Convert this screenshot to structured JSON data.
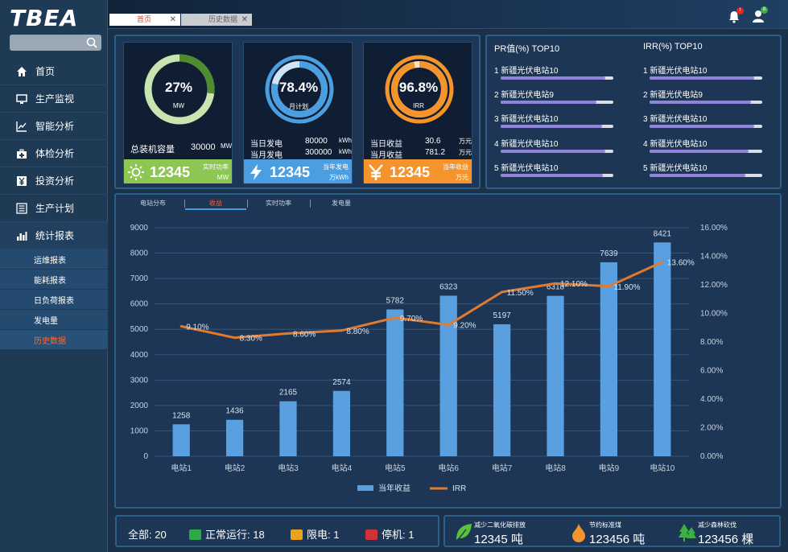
{
  "app": {
    "logo": "TBEA"
  },
  "tabs": [
    {
      "label": "首页",
      "active": true
    },
    {
      "label": "历史数据",
      "active": false
    }
  ],
  "notifications": {
    "bell_count": "!",
    "user_count": "8"
  },
  "nav": [
    {
      "label": "首页",
      "icon": "home-icon"
    },
    {
      "label": "生产监视",
      "icon": "monitor-icon"
    },
    {
      "label": "智能分析",
      "icon": "line-chart-icon"
    },
    {
      "label": "体检分析",
      "icon": "medical-kit-icon"
    },
    {
      "label": "投资分析",
      "icon": "yen-icon"
    },
    {
      "label": "生产计划",
      "icon": "list-icon"
    },
    {
      "label": "统计报表",
      "icon": "chart-bars-icon"
    }
  ],
  "subnav": [
    {
      "label": "运维报表",
      "active": false
    },
    {
      "label": "能耗报表",
      "active": false
    },
    {
      "label": "日负荷报表",
      "active": false
    },
    {
      "label": "发电量",
      "active": false
    },
    {
      "label": "历史数据",
      "active": true
    }
  ],
  "cards": {
    "capacity": {
      "gauge_value": "27%",
      "gauge_unit": "MW",
      "percent": 27,
      "label": "总装机容量",
      "number": "30000",
      "unit": "MW",
      "strip_value": "12345",
      "strip_caption_1": "实时功率",
      "strip_caption_2": "MW",
      "color": "#8dc653",
      "ring_color": "#c8e4b0",
      "accent": "#4f8b2f"
    },
    "plan": {
      "gauge_value": "78.4%",
      "gauge_unit": "月计划",
      "percent": 78.4,
      "rows": [
        {
          "label": "当日发电",
          "number": "80000",
          "unit": "kWh"
        },
        {
          "label": "当月发电",
          "number": "300000",
          "unit": "kWh"
        }
      ],
      "strip_value": "12345",
      "strip_caption_1": "当年发电",
      "strip_caption_2": "万kWh",
      "color": "#4b9fe1"
    },
    "irr": {
      "gauge_value": "96.8%",
      "gauge_unit": "IRR",
      "percent": 96.8,
      "rows": [
        {
          "label": "当日收益",
          "number": "30.6",
          "unit": "万元"
        },
        {
          "label": "当月收益",
          "number": "781.2",
          "unit": "万元"
        }
      ],
      "strip_value": "12345",
      "strip_caption_1": "当年收益",
      "strip_caption_2": "万元",
      "color": "#f5932d"
    }
  },
  "pr_top10": {
    "title": "PR值(%) TOP10",
    "items": [
      {
        "label": "1 新疆光伏电站10",
        "value": 0.93
      },
      {
        "label": "2 新疆光伏电站9",
        "value": 0.85
      },
      {
        "label": "3 新疆光伏电站10",
        "value": 0.9
      },
      {
        "label": "4 新疆光伏电站10",
        "value": 0.93
      },
      {
        "label": "5 新疆光伏电站10",
        "value": 0.91
      }
    ]
  },
  "irr_top10": {
    "title": "IRR(%) TOP10",
    "items": [
      {
        "label": "1 新疆光伏电站10",
        "value": 0.93
      },
      {
        "label": "2 新疆光伏电站9",
        "value": 0.9
      },
      {
        "label": "3 新疆光伏电站10",
        "value": 0.93
      },
      {
        "label": "4 新疆光伏电站10",
        "value": 0.88
      },
      {
        "label": "5 新疆光伏电站10",
        "value": 0.85
      }
    ]
  },
  "chart_tabs": [
    {
      "label": "电站分布",
      "active": false
    },
    {
      "label": "收益",
      "active": true
    },
    {
      "label": "实时功率",
      "active": false
    },
    {
      "label": "发电量",
      "active": false
    }
  ],
  "chart_data": {
    "type": "bar",
    "categories": [
      "电站1",
      "电站2",
      "电站3",
      "电站4",
      "电站5",
      "电站6",
      "电站7",
      "电站8",
      "电站9",
      "电站10"
    ],
    "series": [
      {
        "name": "当年收益",
        "type": "bar",
        "axis": "left",
        "values": [
          1258,
          1436,
          2165,
          2574,
          5782,
          6323,
          5197,
          6318,
          7639,
          8421
        ],
        "labels": [
          "1258",
          "1436",
          "2165",
          "2574",
          "5782",
          "6323",
          "5197",
          "6318",
          "7639",
          "8421"
        ]
      },
      {
        "name": "IRR",
        "type": "line",
        "axis": "right",
        "values": [
          9.1,
          8.3,
          8.6,
          8.8,
          9.7,
          9.2,
          11.5,
          12.1,
          11.9,
          13.6
        ],
        "labels": [
          "9.10%",
          "8.30%",
          "8.60%",
          "8.80%",
          "9.70%",
          "9.20%",
          "11.50%",
          "12.10%",
          "11.90%",
          "13.60%"
        ]
      }
    ],
    "ylim": [
      0,
      9000
    ],
    "yticks": [
      "0",
      "1000",
      "2000",
      "3000",
      "4000",
      "5000",
      "6000",
      "7000",
      "8000",
      "9000"
    ],
    "y2lim": [
      0,
      16
    ],
    "y2ticks": [
      "0.00%",
      "2.00%",
      "4.00%",
      "6.00%",
      "8.00%",
      "10.00%",
      "12.00%",
      "14.00%",
      "16.00%"
    ],
    "grid": true,
    "legend": "bottom",
    "colors": {
      "bar": "#5a9fe0",
      "line": "#e07a2e"
    }
  },
  "status": {
    "total": "全部: 20",
    "normal": "正常运行: 18",
    "limited": "限电: 1",
    "stopped": "停机: 1"
  },
  "eco": [
    {
      "title": "减少二氧化碳排放",
      "value": "12345",
      "unit": "吨"
    },
    {
      "title": "节约标准煤",
      "value": "123456",
      "unit": "吨"
    },
    {
      "title": "减少森林砍伐",
      "value": "123456",
      "unit": "棵"
    }
  ]
}
